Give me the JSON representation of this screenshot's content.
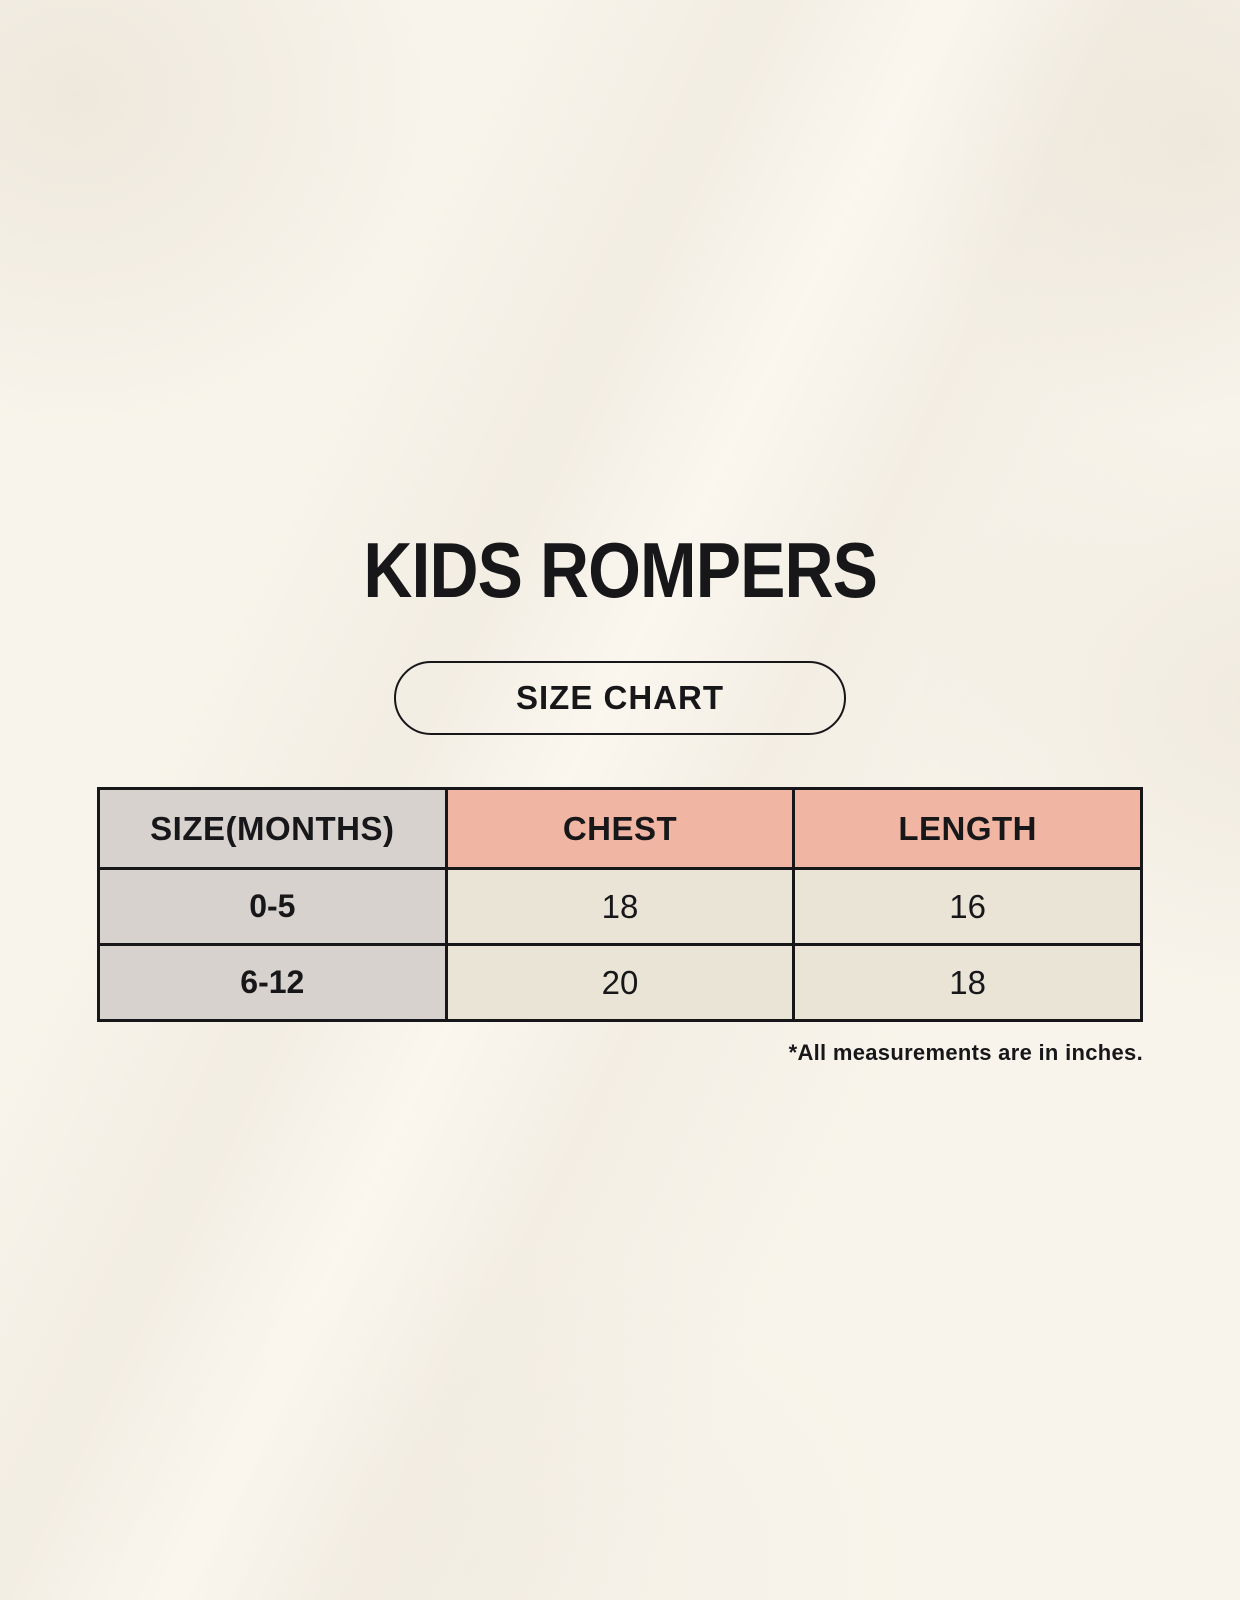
{
  "page": {
    "title": "KIDS ROMPERS",
    "size_chart_button": "SIZE CHART",
    "footnote": "*All measurements are in inches."
  },
  "chart_data": {
    "type": "table",
    "title": "KIDS ROMPERS",
    "subtitle": "SIZE CHART",
    "columns": [
      "SIZE(MONTHS)",
      "CHEST",
      "LENGTH"
    ],
    "rows": [
      [
        "0-5",
        "18",
        "16"
      ],
      [
        "6-12",
        "20",
        "18"
      ]
    ],
    "footnote": "*All measurements are in inches.",
    "units": "inches"
  },
  "colors": {
    "background": "#f8f4eb",
    "size_column_bg": "#d8d2ce",
    "accent_header_bg": "#f0b5a3",
    "data_cell_bg": "#eae4d7",
    "table_border": "#17171a",
    "text": "#17171a"
  }
}
